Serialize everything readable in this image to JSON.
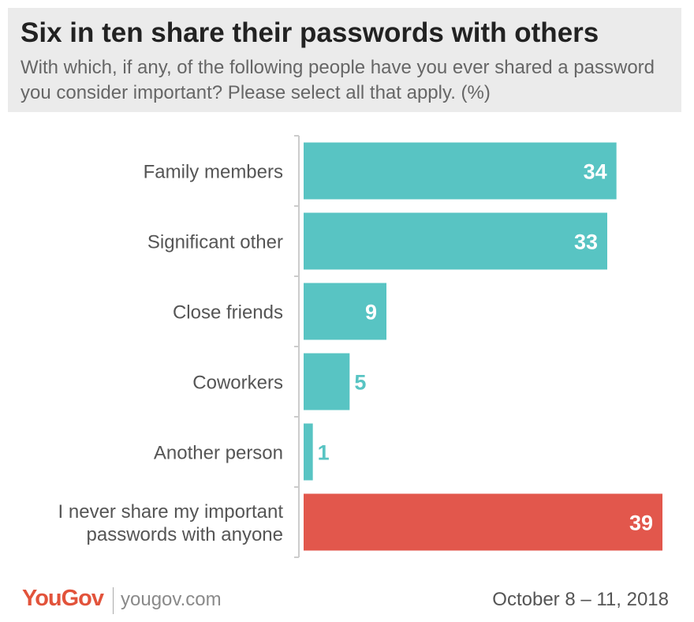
{
  "chart_data": {
    "type": "bar",
    "orientation": "horizontal",
    "title": "Six in ten share their passwords with others",
    "subtitle": "With which, if any, of the following people have you ever shared a password you consider important? Please select all that apply. (%)",
    "categories": [
      [
        "Family members"
      ],
      [
        "Significant other"
      ],
      [
        "Close friends"
      ],
      [
        "Coworkers"
      ],
      [
        "Another person"
      ],
      [
        "I never share my important",
        "passwords with anyone"
      ]
    ],
    "values": [
      34,
      33,
      9,
      5,
      1,
      39
    ],
    "colors": [
      "#58c4c3",
      "#58c4c3",
      "#58c4c3",
      "#58c4c3",
      "#58c4c3",
      "#e2574c"
    ],
    "label_color_inside": "#ffffff",
    "label_color_outside": "#58c4c3",
    "xlim": [
      0,
      40
    ],
    "grid": false
  },
  "footer": {
    "brand": "YouGov",
    "url": "yougov.com",
    "date": "October 8 – 11, 2018"
  }
}
